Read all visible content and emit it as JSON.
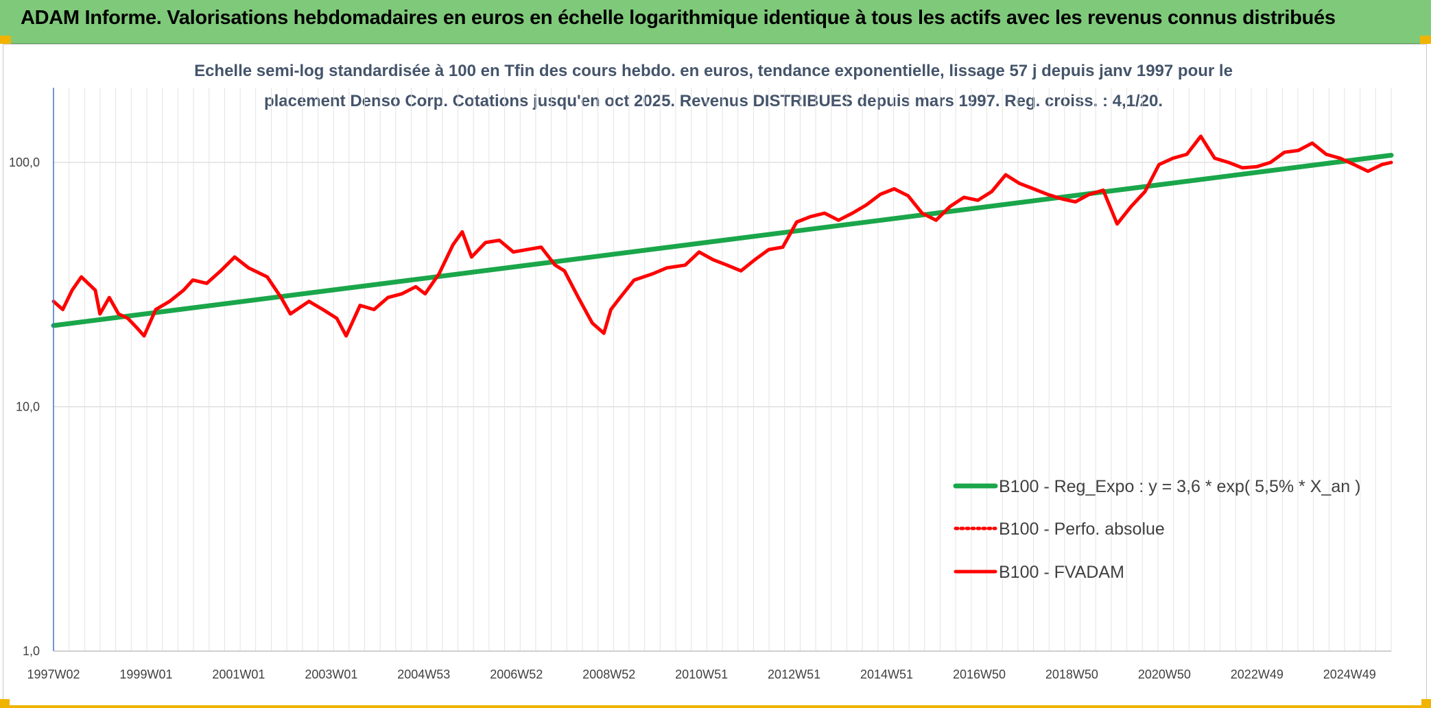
{
  "banner": {
    "title": "ADAM Informe. Valorisations hebdomadaires en euros en échelle logarithmique identique à tous les actifs avec les revenus connus distribués"
  },
  "chart_data": {
    "type": "line",
    "title_line1": "Echelle semi-log standardisée à 100 en Tfin des cours hebdo. en euros, tendance exponentielle, lissage 57 j depuis janv 1997 pour le",
    "title_line2": "placement Denso Corp. Cotations jusqu'en oct 2025. Revenus DISTRIBUES depuis mars 1997. Reg. croiss. : 4,1/20.",
    "y_scale": "log",
    "ylim": [
      1,
      200
    ],
    "y_ticks": [
      1,
      10,
      100
    ],
    "y_tick_labels": [
      "1,0",
      "10,0",
      "100,0"
    ],
    "x_tick_labels": [
      "1997W02",
      "1999W01",
      "2001W01",
      "2003W01",
      "2004W53",
      "2006W52",
      "2008W52",
      "2010W51",
      "2012W51",
      "2014W51",
      "2016W50",
      "2018W50",
      "2020W50",
      "2022W49",
      "2024W49"
    ],
    "xlim": [
      1997.0,
      2025.8
    ],
    "grid": true,
    "legend_position": "bottom-right",
    "series": [
      {
        "name": "B100 - Reg_Expo : y = 3,6 * exp( 5,5% *  X_an )",
        "color": "#1aa64a",
        "style": "solid",
        "x": [
          1997.0,
          2025.8
        ],
        "values": [
          21.5,
          107
        ]
      },
      {
        "name": "B100 - Perfo. absolue",
        "color": "#ff0000",
        "style": "dotted",
        "x": [],
        "values": []
      },
      {
        "name": "B100 - FVADAM",
        "color": "#ff0000",
        "style": "solid",
        "x": [
          1997.0,
          1997.2,
          1997.4,
          1997.6,
          1997.9,
          1998.0,
          1998.2,
          1998.4,
          1998.6,
          1998.8,
          1998.95,
          1999.2,
          1999.5,
          1999.8,
          2000.0,
          2000.3,
          2000.6,
          2000.9,
          2001.2,
          2001.6,
          2001.9,
          2002.1,
          2002.5,
          2002.8,
          2003.1,
          2003.3,
          2003.6,
          2003.9,
          2004.2,
          2004.5,
          2004.8,
          2005.0,
          2005.3,
          2005.6,
          2005.8,
          2006.0,
          2006.3,
          2006.6,
          2006.9,
          2007.2,
          2007.5,
          2007.8,
          2008.0,
          2008.3,
          2008.6,
          2008.85,
          2009.0,
          2009.2,
          2009.5,
          2009.9,
          2010.2,
          2010.6,
          2010.9,
          2011.2,
          2011.5,
          2011.8,
          2012.1,
          2012.4,
          2012.7,
          2013.0,
          2013.3,
          2013.6,
          2013.9,
          2014.2,
          2014.5,
          2014.8,
          2015.1,
          2015.4,
          2015.7,
          2016.0,
          2016.3,
          2016.6,
          2016.9,
          2017.2,
          2017.5,
          2017.8,
          2018.1,
          2018.4,
          2018.7,
          2019.0,
          2019.3,
          2019.6,
          2019.9,
          2020.2,
          2020.5,
          2020.8,
          2021.1,
          2021.4,
          2021.7,
          2022.0,
          2022.3,
          2022.6,
          2022.9,
          2023.2,
          2023.5,
          2023.8,
          2024.1,
          2024.4,
          2024.7,
          2025.0,
          2025.3,
          2025.6,
          2025.8
        ],
        "values": [
          27,
          25,
          30,
          34,
          30,
          24,
          28,
          24,
          23,
          21,
          19.5,
          25,
          27,
          30,
          33,
          32,
          36,
          41,
          37,
          34,
          28,
          24,
          27,
          25,
          23,
          19.5,
          26,
          25,
          28,
          29,
          31,
          29,
          35,
          46,
          52,
          41,
          47,
          48,
          43,
          44,
          45,
          38,
          36,
          28,
          22,
          20,
          25,
          28,
          33,
          35,
          37,
          38,
          43,
          40,
          38,
          36,
          40,
          44,
          45,
          57,
          60,
          62,
          58,
          62,
          67,
          74,
          78,
          73,
          62,
          58,
          66,
          72,
          70,
          76,
          89,
          82,
          78,
          74,
          71,
          69,
          74,
          77,
          56,
          66,
          76,
          98,
          104,
          108,
          128,
          104,
          100,
          95,
          96,
          100,
          110,
          112,
          120,
          108,
          104,
          98,
          92,
          98,
          100
        ]
      }
    ]
  }
}
